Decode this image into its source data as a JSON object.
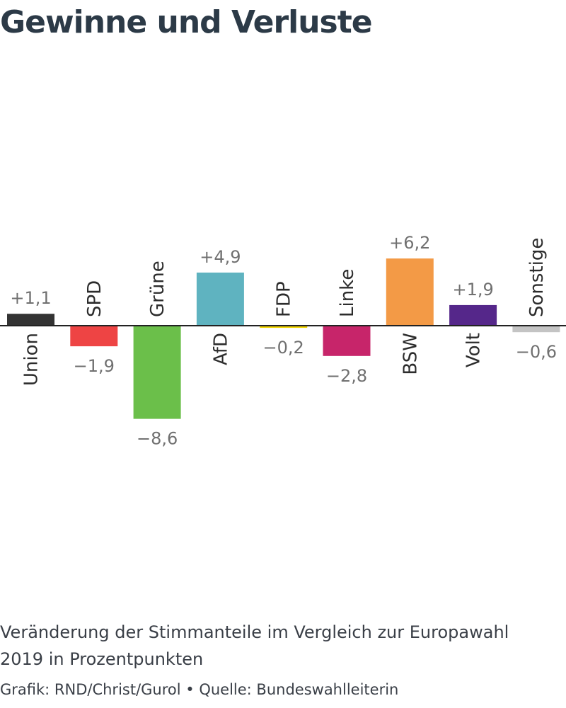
{
  "chart_data": {
    "type": "bar",
    "title": "Gewinne und Verluste",
    "subtitle": "Veränderung der Stimmanteile im Vergleich zur Europawahl 2019 in Prozentpunkten",
    "source": "Grafik: RND/Christ/Gurol • Quelle: Bundeswahlleiterin",
    "categories": [
      "Union",
      "SPD",
      "Grüne",
      "AfD",
      "FDP",
      "Linke",
      "BSW",
      "Volt",
      "Sonstige"
    ],
    "values": [
      1.1,
      -1.9,
      -8.6,
      4.9,
      -0.2,
      -2.8,
      6.2,
      1.9,
      -0.6
    ],
    "value_labels": [
      "+1,1",
      "−1,9",
      "−8,6",
      "+4,9",
      "−0,2",
      "−2,8",
      "+6,2",
      "+1,9",
      "−0,6"
    ],
    "colors": [
      "#333333",
      "#ee4444",
      "#6bbf4a",
      "#5fb3c0",
      "#f3d600",
      "#c7256a",
      "#f39a46",
      "#55278a",
      "#c4c4c4"
    ],
    "ylim": [
      -8.6,
      6.2
    ],
    "grid": false,
    "legend": "none",
    "baseline": 0
  }
}
